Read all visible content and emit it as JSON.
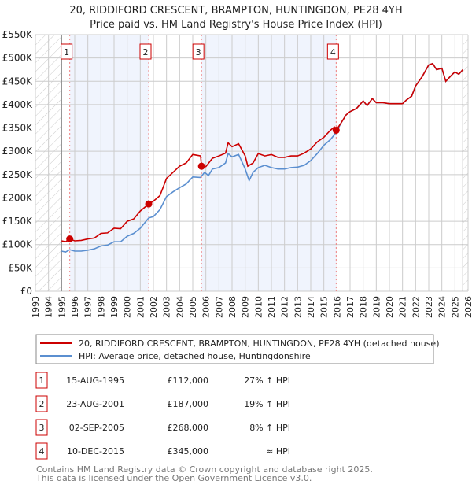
{
  "chart_data": {
    "type": "line",
    "title": "20, RIDDIFORD CRESCENT, BRAMPTON, HUNTINGDON, PE28 4YH",
    "subtitle": "Price paid vs. HM Land Registry's House Price Index (HPI)",
    "xlim": [
      1993,
      2026
    ],
    "ylim": [
      0,
      550000
    ],
    "x_ticks": [
      "1993",
      "1994",
      "1995",
      "1996",
      "1997",
      "1998",
      "1999",
      "2000",
      "2001",
      "2002",
      "2003",
      "2004",
      "2005",
      "2006",
      "2007",
      "2008",
      "2009",
      "2010",
      "2011",
      "2012",
      "2013",
      "2014",
      "2015",
      "2016",
      "2017",
      "2018",
      "2019",
      "2020",
      "2021",
      "2022",
      "2023",
      "2024",
      "2025",
      "2026"
    ],
    "y_ticks": [
      {
        "v": 0,
        "label": "£0"
      },
      {
        "v": 50000,
        "label": "£50K"
      },
      {
        "v": 100000,
        "label": "£100K"
      },
      {
        "v": 150000,
        "label": "£150K"
      },
      {
        "v": 200000,
        "label": "£200K"
      },
      {
        "v": 250000,
        "label": "£250K"
      },
      {
        "v": 300000,
        "label": "£300K"
      },
      {
        "v": 350000,
        "label": "£350K"
      },
      {
        "v": 400000,
        "label": "£400K"
      },
      {
        "v": 450000,
        "label": "£450K"
      },
      {
        "v": 500000,
        "label": "£500K"
      },
      {
        "v": 550000,
        "label": "£550K"
      }
    ],
    "grid": true,
    "data_range": [
      1995.0,
      2025.6
    ],
    "series": [
      {
        "name": "20, RIDDIFORD CRESCENT, BRAMPTON, HUNTINGDON, PE28 4YH (detached house)",
        "color": "#cc0000",
        "x": [
          1995.0,
          1995.3,
          1995.62,
          1996.0,
          1996.5,
          1997.0,
          1997.5,
          1998.0,
          1998.5,
          1999.0,
          1999.5,
          2000.0,
          2000.5,
          2001.0,
          2001.64,
          2002.0,
          2002.5,
          2003.0,
          2003.5,
          2004.0,
          2004.5,
          2005.0,
          2005.6,
          2005.67,
          2006.0,
          2006.5,
          2007.0,
          2007.5,
          2007.7,
          2008.0,
          2008.5,
          2009.0,
          2009.2,
          2009.6,
          2010.0,
          2010.5,
          2011.0,
          2011.5,
          2012.0,
          2012.5,
          2013.0,
          2013.5,
          2014.0,
          2014.5,
          2015.0,
          2015.5,
          2015.8,
          2015.94,
          2016.3,
          2016.7,
          2017.0,
          2017.5,
          2018.0,
          2018.3,
          2018.7,
          2019.0,
          2019.5,
          2020.0,
          2020.5,
          2021.0,
          2021.3,
          2021.7,
          2022.0,
          2022.5,
          2023.0,
          2023.3,
          2023.6,
          2024.0,
          2024.3,
          2024.7,
          2025.0,
          2025.3,
          2025.6
        ],
        "y": [
          108000,
          106000,
          112000,
          108000,
          109000,
          112000,
          114000,
          124000,
          125000,
          135000,
          134000,
          150000,
          155000,
          172000,
          187000,
          193000,
          205000,
          242000,
          255000,
          268000,
          275000,
          293000,
          290000,
          268000,
          267000,
          285000,
          290000,
          296000,
          318000,
          310000,
          316000,
          290000,
          268000,
          275000,
          295000,
          290000,
          293000,
          287000,
          287000,
          290000,
          290000,
          296000,
          305000,
          320000,
          330000,
          345000,
          352000,
          345000,
          360000,
          378000,
          385000,
          392000,
          408000,
          398000,
          413000,
          404000,
          404000,
          402000,
          402000,
          402000,
          410000,
          418000,
          440000,
          460000,
          485000,
          488000,
          475000,
          478000,
          450000,
          462000,
          470000,
          465000,
          475000
        ]
      },
      {
        "name": "HPI: Average price, detached house, Huntingdonshire",
        "color": "#5b8fd0",
        "x": [
          1995.0,
          1995.3,
          1995.62,
          1996.0,
          1996.5,
          1997.0,
          1997.5,
          1998.0,
          1998.5,
          1999.0,
          1999.5,
          2000.0,
          2000.5,
          2001.0,
          2001.64,
          2002.0,
          2002.5,
          2003.0,
          2003.5,
          2004.0,
          2004.5,
          2005.0,
          2005.6,
          2005.9,
          2006.2,
          2006.5,
          2007.0,
          2007.5,
          2007.7,
          2008.0,
          2008.5,
          2009.0,
          2009.3,
          2009.6,
          2010.0,
          2010.5,
          2011.0,
          2011.5,
          2012.0,
          2012.5,
          2013.0,
          2013.5,
          2014.0,
          2014.5,
          2015.0,
          2015.5,
          2015.94,
          2016.3,
          2016.7,
          2017.0,
          2017.5,
          2018.0,
          2018.3,
          2018.7,
          2019.0,
          2019.5,
          2020.0,
          2020.5,
          2021.0,
          2021.3,
          2021.7,
          2022.0,
          2022.5,
          2023.0,
          2023.3,
          2023.6,
          2024.0,
          2024.3,
          2024.7,
          2025.0,
          2025.3,
          2025.6
        ],
        "y": [
          86000,
          84000,
          89000,
          86000,
          86000,
          88000,
          91000,
          97000,
          99000,
          106000,
          106000,
          118000,
          124000,
          135000,
          157000,
          160000,
          175000,
          203000,
          213000,
          222000,
          230000,
          245000,
          244000,
          255000,
          248000,
          262000,
          265000,
          275000,
          295000,
          288000,
          293000,
          262000,
          237000,
          255000,
          265000,
          270000,
          265000,
          262000,
          262000,
          265000,
          266000,
          270000,
          280000,
          295000,
          313000,
          325000,
          340000,
          360000,
          378000,
          385000,
          392000,
          408000,
          398000,
          413000,
          404000,
          404000,
          402000,
          402000,
          402000,
          410000,
          418000,
          440000,
          460000,
          485000,
          488000,
          475000,
          478000,
          450000,
          462000,
          470000,
          465000,
          475000
        ]
      }
    ],
    "sales": [
      {
        "n": "1",
        "x": 1995.62,
        "y": 112000,
        "date": "15-AUG-1995",
        "price": "£112,000",
        "hpi": "27% ↑ HPI"
      },
      {
        "n": "2",
        "x": 2001.64,
        "y": 187000,
        "date": "23-AUG-2001",
        "price": "£187,000",
        "hpi": "19% ↑ HPI"
      },
      {
        "n": "3",
        "x": 2005.67,
        "y": 268000,
        "date": "02-SEP-2005",
        "price": "£268,000",
        "hpi": "8% ↑ HPI"
      },
      {
        "n": "4",
        "x": 2015.94,
        "y": 345000,
        "date": "10-DEC-2015",
        "price": "£345,000",
        "hpi": "≈ HPI"
      }
    ],
    "legend": [
      "20, RIDDIFORD CRESCENT, BRAMPTON, HUNTINGDON, PE28 4YH (detached house)",
      "HPI: Average price, detached house, Huntingdonshire"
    ],
    "legend_position": "below"
  },
  "footer": [
    "Contains HM Land Registry data © Crown copyright and database right 2025.",
    "This data is licensed under the Open Government Licence v3.0."
  ]
}
